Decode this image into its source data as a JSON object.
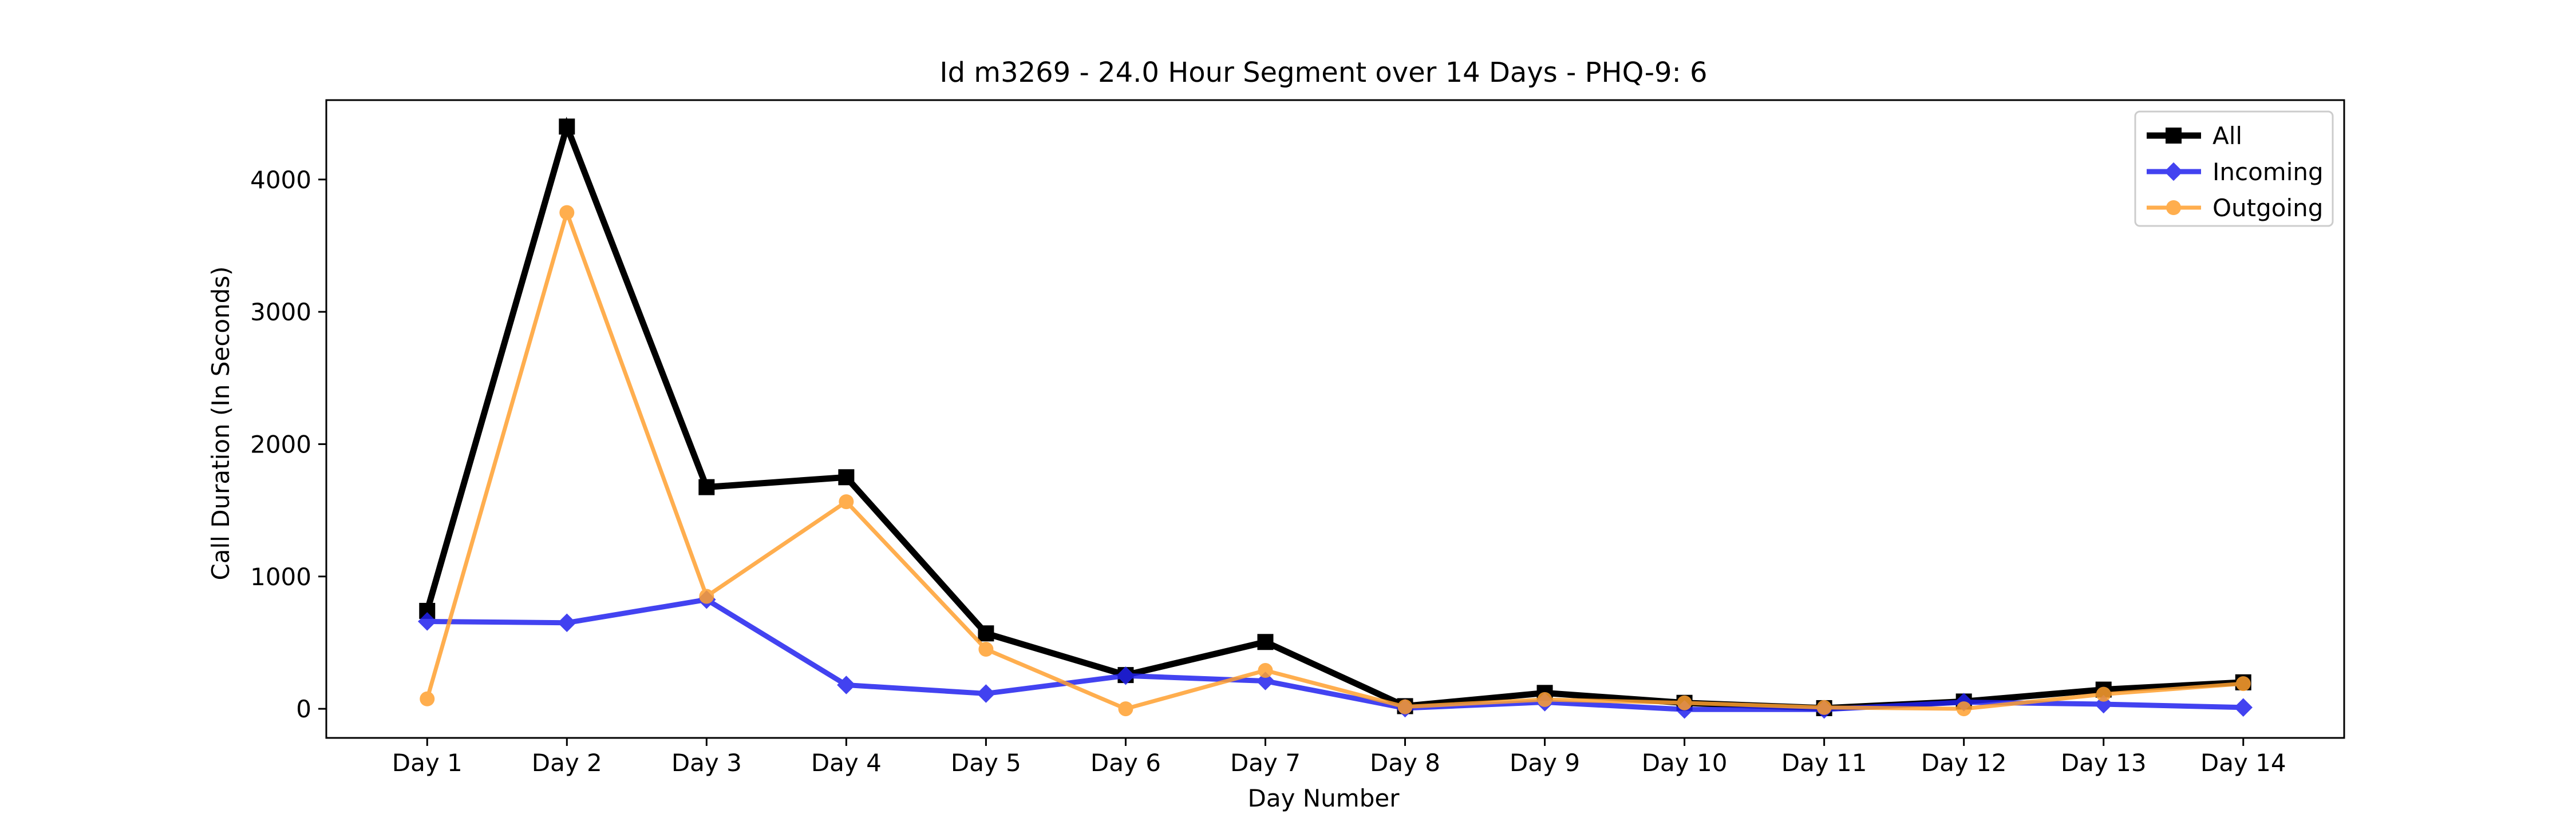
{
  "chart_data": {
    "type": "line",
    "title": "Id m3269 - 24.0 Hour Segment over 14 Days - PHQ-9: 6",
    "xlabel": "Day Number",
    "ylabel": "Call Duration (In Seconds)",
    "categories": [
      "Day 1",
      "Day 2",
      "Day 3",
      "Day 4",
      "Day 5",
      "Day 6",
      "Day 7",
      "Day 8",
      "Day 9",
      "Day 10",
      "Day 11",
      "Day 12",
      "Day 13",
      "Day 14"
    ],
    "ylim": [
      -220,
      4600
    ],
    "yticks": [
      0,
      1000,
      2000,
      3000,
      4000
    ],
    "grid": false,
    "legend_position": "top-right",
    "series": [
      {
        "name": "All",
        "color": "#000000",
        "marker": "square",
        "values": [
          740,
          4400,
          1675,
          1750,
          570,
          255,
          505,
          20,
          120,
          45,
          5,
          55,
          145,
          200
        ]
      },
      {
        "name": "Incoming",
        "color": "#2222ee",
        "marker": "diamond",
        "values": [
          660,
          650,
          825,
          180,
          115,
          250,
          210,
          5,
          50,
          -5,
          -5,
          50,
          35,
          10
        ]
      },
      {
        "name": "Outgoing",
        "color": "#ffa030",
        "marker": "circle",
        "values": [
          75,
          3750,
          850,
          1565,
          450,
          0,
          290,
          15,
          70,
          45,
          10,
          0,
          110,
          190
        ]
      }
    ]
  }
}
